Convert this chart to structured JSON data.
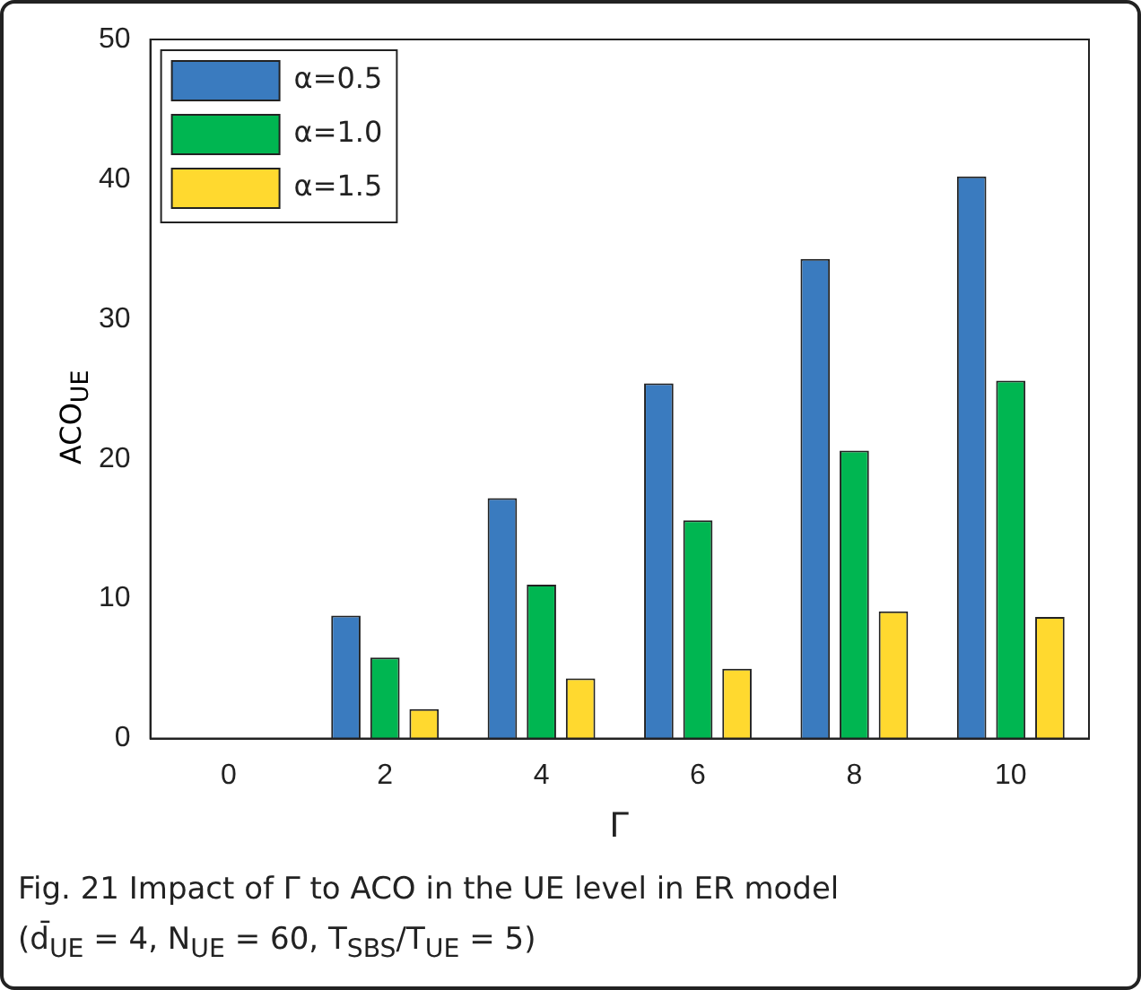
{
  "chart_data": {
    "type": "bar",
    "xlabel": "Γ",
    "ylabel": "ACO$_{UE}$",
    "categories": [
      "0",
      "2",
      "4",
      "6",
      "8",
      "10"
    ],
    "series": [
      {
        "name": "α=0.5",
        "color": "#3a7bbf",
        "values": [
          0,
          8.8,
          17.2,
          25.4,
          34.3,
          40.2
        ]
      },
      {
        "name": "α=1.0",
        "color": "#00b651",
        "values": [
          0,
          5.8,
          11.0,
          15.6,
          20.6,
          25.6
        ]
      },
      {
        "name": "α=1.5",
        "color": "#ffd92f",
        "values": [
          0,
          2.1,
          4.3,
          5.0,
          9.1,
          8.7
        ]
      }
    ],
    "ylim": [
      0,
      50
    ],
    "yticks": [
      0,
      10,
      20,
      30,
      40,
      50
    ],
    "grid": false,
    "legend": "top left",
    "annotations": [
      "Fig. 21 Impact of Γ to ACO in the UE level in ER model (d̄$_{UE}$ = 4, N$_{UE}$ = 60, T$_{SBS}$/T$_{UE}$ = 5)"
    ]
  }
}
